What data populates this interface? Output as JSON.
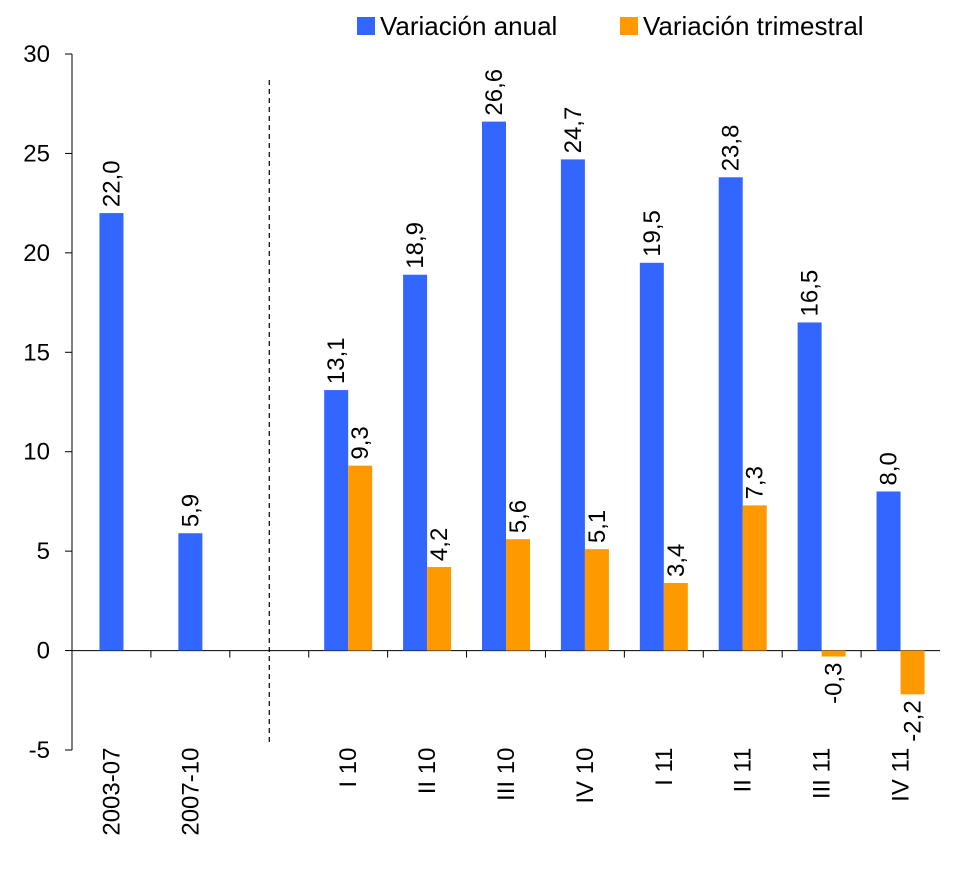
{
  "chart_data": {
    "type": "bar",
    "categories": [
      "2003-07",
      "2007-10",
      "",
      "I 10",
      "II 10",
      "III 10",
      "IV 10",
      "I 11",
      "II 11",
      "III 11",
      "IV 11"
    ],
    "series": [
      {
        "name": "Variación anual",
        "color": "#3366FF",
        "values": [
          22.0,
          5.9,
          null,
          13.1,
          18.9,
          26.6,
          24.7,
          19.5,
          23.8,
          16.5,
          8.0
        ],
        "labels": [
          "22,0",
          "5,9",
          "",
          "13,1",
          "18,9",
          "26,6",
          "24,7",
          "19,5",
          "23,8",
          "16,5",
          "8,0"
        ]
      },
      {
        "name": "Variación trimestral",
        "color": "#FF9900",
        "values": [
          null,
          null,
          null,
          9.3,
          4.2,
          5.6,
          5.1,
          3.4,
          7.3,
          -0.3,
          -2.2
        ],
        "labels": [
          "",
          "",
          "",
          "9,3",
          "4,2",
          "5,6",
          "5,1",
          "3,4",
          "7,3",
          "-0,3",
          "-2,2"
        ]
      }
    ],
    "title": "",
    "xlabel": "",
    "ylabel": "",
    "ylim": [
      -5,
      30
    ],
    "yticks": [
      30,
      25,
      20,
      15,
      10,
      5,
      0,
      -5
    ],
    "grid": false,
    "legend_position": "top",
    "separator": "dashed vertical line between 2007-10 and I 10"
  }
}
